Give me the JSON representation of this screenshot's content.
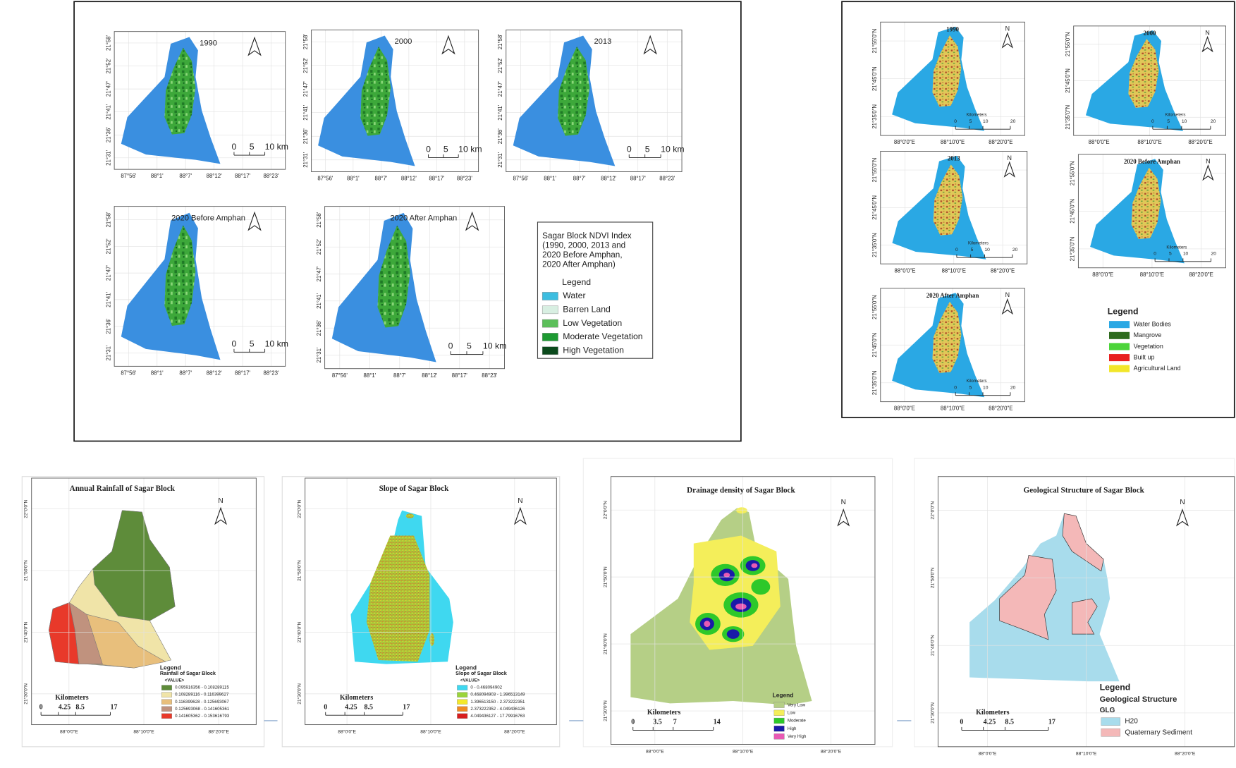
{
  "ndvi": {
    "maps": [
      "1990",
      "2000",
      "2013",
      "2020 Before Amphan",
      "2020 After Amphan"
    ],
    "x_labels": [
      "87°56'",
      "88°1'",
      "88°7'",
      "88°12'",
      "88°17'",
      "88°23'"
    ],
    "y_labels": [
      "21°31'",
      "21°36'",
      "21°41'",
      "21°47'",
      "21°52'",
      "21°58'"
    ],
    "scale": [
      "0",
      "5",
      "10 km"
    ],
    "legend": {
      "title": [
        "Sagar Block NDVI Index",
        "(1990, 2000, 2013 and",
        "2020 Before Amphan,",
        "2020 After Amphan)"
      ],
      "heading": "Legend",
      "items": [
        {
          "label": "Water",
          "color": "#3cbde0"
        },
        {
          "label": "Barren Land",
          "color": "#d8efe2"
        },
        {
          "label": "Low Vegetation",
          "color": "#5cbf5a"
        },
        {
          "label": "Moderate Vegetation",
          "color": "#1d9a32"
        },
        {
          "label": "High Vegetation",
          "color": "#0b4a1c"
        }
      ]
    }
  },
  "lulc": {
    "maps": [
      "1990",
      "2000",
      "2013",
      "2020 Before Amphan",
      "2020 After Amphan"
    ],
    "north": "N",
    "x_labels": [
      "88°0'0\"E",
      "88°10'0\"E",
      "88°20'0\"E"
    ],
    "y_labels": [
      "21°35'0\"N",
      "21°45'0\"N",
      "21°55'0\"N"
    ],
    "scale": {
      "heading": "Kilometers",
      "ticks": [
        "0",
        "5",
        "10",
        "20"
      ]
    },
    "legend": {
      "heading": "Legend",
      "items": [
        {
          "label": "Water Bodies",
          "color": "#2aa8e4"
        },
        {
          "label": "Mangrove",
          "color": "#2e6b1e"
        },
        {
          "label": "Vegetation",
          "color": "#4cd43a"
        },
        {
          "label": "Built up",
          "color": "#e82020"
        },
        {
          "label": "Agricultural Land",
          "color": "#f2e62a"
        }
      ]
    }
  },
  "bottom": {
    "north": "N",
    "x_labels": [
      "88°0'0\"E",
      "88°10'0\"E",
      "88°20'0\"E"
    ],
    "y_labels": [
      "21°30'0\"N",
      "21°40'0\"N",
      "21°50'0\"N",
      "22°0'0\"N"
    ],
    "maps": [
      {
        "title": "Annual Rainfall of Sagar Block",
        "scale": {
          "heading": "Kilometers",
          "ticks": [
            "0",
            "4.25",
            "8.5",
            "17"
          ]
        },
        "legend": {
          "heading": "Legend",
          "title": "Rainfall of Sagar Block",
          "subtitle": "<VALUE>",
          "items": [
            {
              "label": "0.095916356 - 0.108289115",
              "color": "#5e8c3a"
            },
            {
              "label": "0.108289116 - 0.116399627",
              "color": "#f0e4a8"
            },
            {
              "label": "0.116399628 - 0.125693067",
              "color": "#e8bf7c"
            },
            {
              "label": "0.125693068 - 0.141605361",
              "color": "#c0927e"
            },
            {
              "label": "0.141605362 - 0.153616793",
              "color": "#e8392a"
            }
          ]
        }
      },
      {
        "title": "Slope of Sagar Block",
        "scale": {
          "heading": "Kilometers",
          "ticks": [
            "0",
            "4.25",
            "8.5",
            "17"
          ]
        },
        "legend": {
          "heading": "Legend",
          "title": "Slope of Sagar Block",
          "subtitle": "<VALUE>",
          "items": [
            {
              "label": "0 - 0.468094902",
              "color": "#3fd8f0"
            },
            {
              "label": "0.468094903 - 1.396513149",
              "color": "#9ad43a"
            },
            {
              "label": "1.396513150 - 2.373222351",
              "color": "#f4e82a"
            },
            {
              "label": "2.373222352 - 4.049436126",
              "color": "#f08a22"
            },
            {
              "label": "4.049436127 - 17.79916763",
              "color": "#d81e1e"
            }
          ]
        }
      },
      {
        "title": "Drainage density of Sagar Block",
        "scale": {
          "heading": "Kilometers",
          "ticks": [
            "0",
            "3.5",
            "7",
            "14"
          ]
        },
        "legend": {
          "heading": "Legend",
          "items": [
            {
              "label": "Very Low",
              "color": "#b5cf86"
            },
            {
              "label": "Low",
              "color": "#f4ee5a"
            },
            {
              "label": "Moderate",
              "color": "#2ec82a"
            },
            {
              "label": "High",
              "color": "#1a1aa8"
            },
            {
              "label": "Very High",
              "color": "#e85ab4"
            }
          ]
        }
      },
      {
        "title": "Geological Structure of Sagar Block",
        "scale": {
          "heading": "Kilometers",
          "ticks": [
            "0",
            "4.25",
            "8.5",
            "17"
          ]
        },
        "legend": {
          "heading": "Legend",
          "title": "Geological Structure",
          "subtitle": "GLG",
          "items": [
            {
              "label": "H20",
              "color": "#a8dcec"
            },
            {
              "label": "Quaternary Sediment",
              "color": "#f4b8b8"
            }
          ]
        }
      }
    ]
  }
}
